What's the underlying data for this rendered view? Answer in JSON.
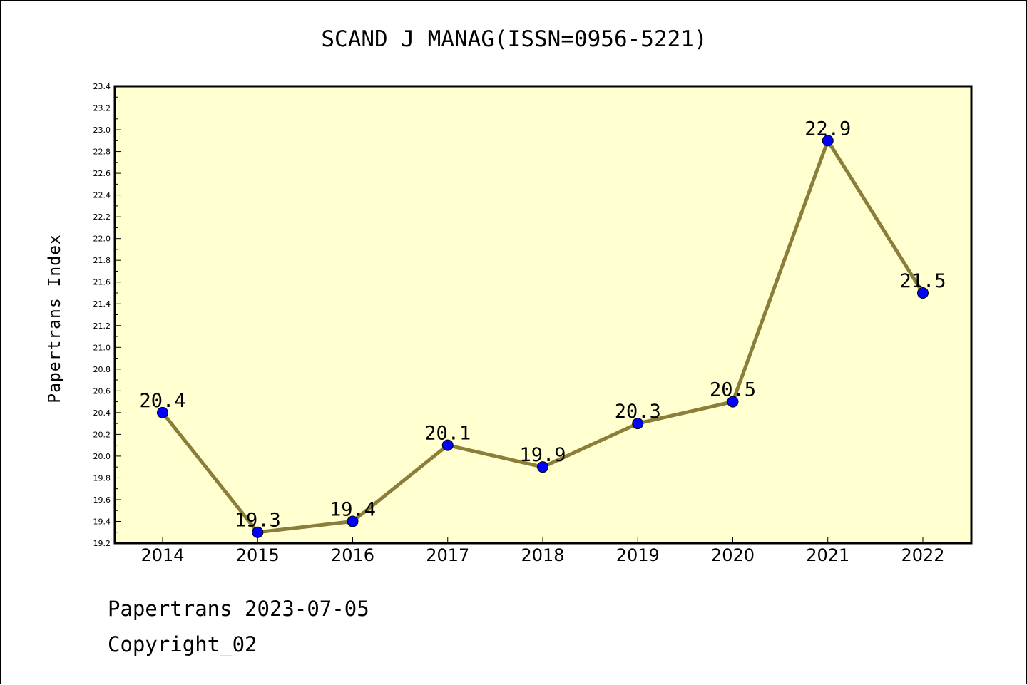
{
  "title": "SCAND J MANAG(ISSN=0956-5221)",
  "footer": {
    "line1": "Papertrans 2023-07-05",
    "line2": "Copyright_02"
  },
  "colors": {
    "plot_background": "#ffffd0",
    "line": "#8b7d3a",
    "marker": "#0000ff",
    "axis": "#000000"
  },
  "chart_data": {
    "type": "line",
    "title": "SCAND J MANAG(ISSN=0956-5221)",
    "xlabel": "",
    "ylabel": "Papertrans Index",
    "categories": [
      "2014",
      "2015",
      "2016",
      "2017",
      "2018",
      "2019",
      "2020",
      "2021",
      "2022"
    ],
    "series": [
      {
        "values": [
          20.4,
          19.3,
          19.4,
          20.1,
          19.9,
          20.3,
          20.5,
          22.9,
          21.5
        ]
      }
    ],
    "data_labels": [
      "20.4",
      "19.3",
      "19.4",
      "20.1",
      "19.9",
      "20.3",
      "20.5",
      "22.9",
      "21.5"
    ],
    "ylim": [
      19.2,
      23.4
    ],
    "yticks": [
      "19.2",
      "19.4",
      "19.6",
      "19.8",
      "20.0",
      "20.2",
      "20.4",
      "20.6",
      "20.8",
      "21.0",
      "21.2",
      "21.4",
      "21.6",
      "21.8",
      "22.0",
      "22.2",
      "22.4",
      "22.6",
      "22.8",
      "23.0",
      "23.2",
      "23.4"
    ],
    "grid": false,
    "legend": "none"
  }
}
